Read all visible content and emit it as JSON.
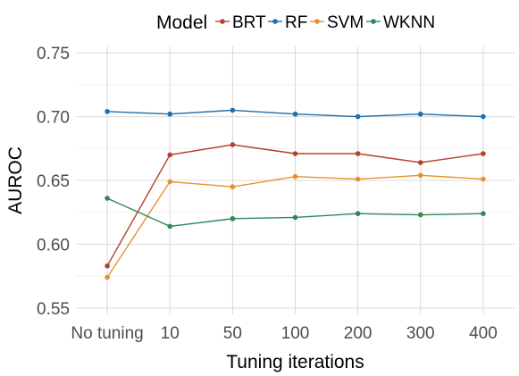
{
  "chart_data": {
    "type": "line",
    "title": "",
    "xlabel": "Tuning iterations",
    "ylabel": "AUROC",
    "categories": [
      "No tuning",
      "10",
      "50",
      "100",
      "200",
      "300",
      "400"
    ],
    "ylim": [
      0.545,
      0.755
    ],
    "yticks": [
      "0.55",
      "0.60",
      "0.65",
      "0.70",
      "0.75"
    ],
    "ytick_values": [
      0.55,
      0.6,
      0.65,
      0.7,
      0.75
    ],
    "grid": true,
    "legend": {
      "title": "Model",
      "position": "top"
    },
    "series": [
      {
        "name": "BRT",
        "color": "#b5402b",
        "values": [
          0.583,
          0.67,
          0.678,
          0.671,
          0.671,
          0.664,
          0.671
        ]
      },
      {
        "name": "RF",
        "color": "#1f6fa8",
        "values": [
          0.704,
          0.702,
          0.705,
          0.702,
          0.7,
          0.702,
          0.7
        ]
      },
      {
        "name": "SVM",
        "color": "#e8912c",
        "values": [
          0.574,
          0.649,
          0.645,
          0.653,
          0.651,
          0.654,
          0.651
        ]
      },
      {
        "name": "WKNN",
        "color": "#2b8a55",
        "values": [
          0.636,
          0.614,
          0.62,
          0.621,
          0.624,
          0.623,
          0.624
        ]
      }
    ]
  }
}
